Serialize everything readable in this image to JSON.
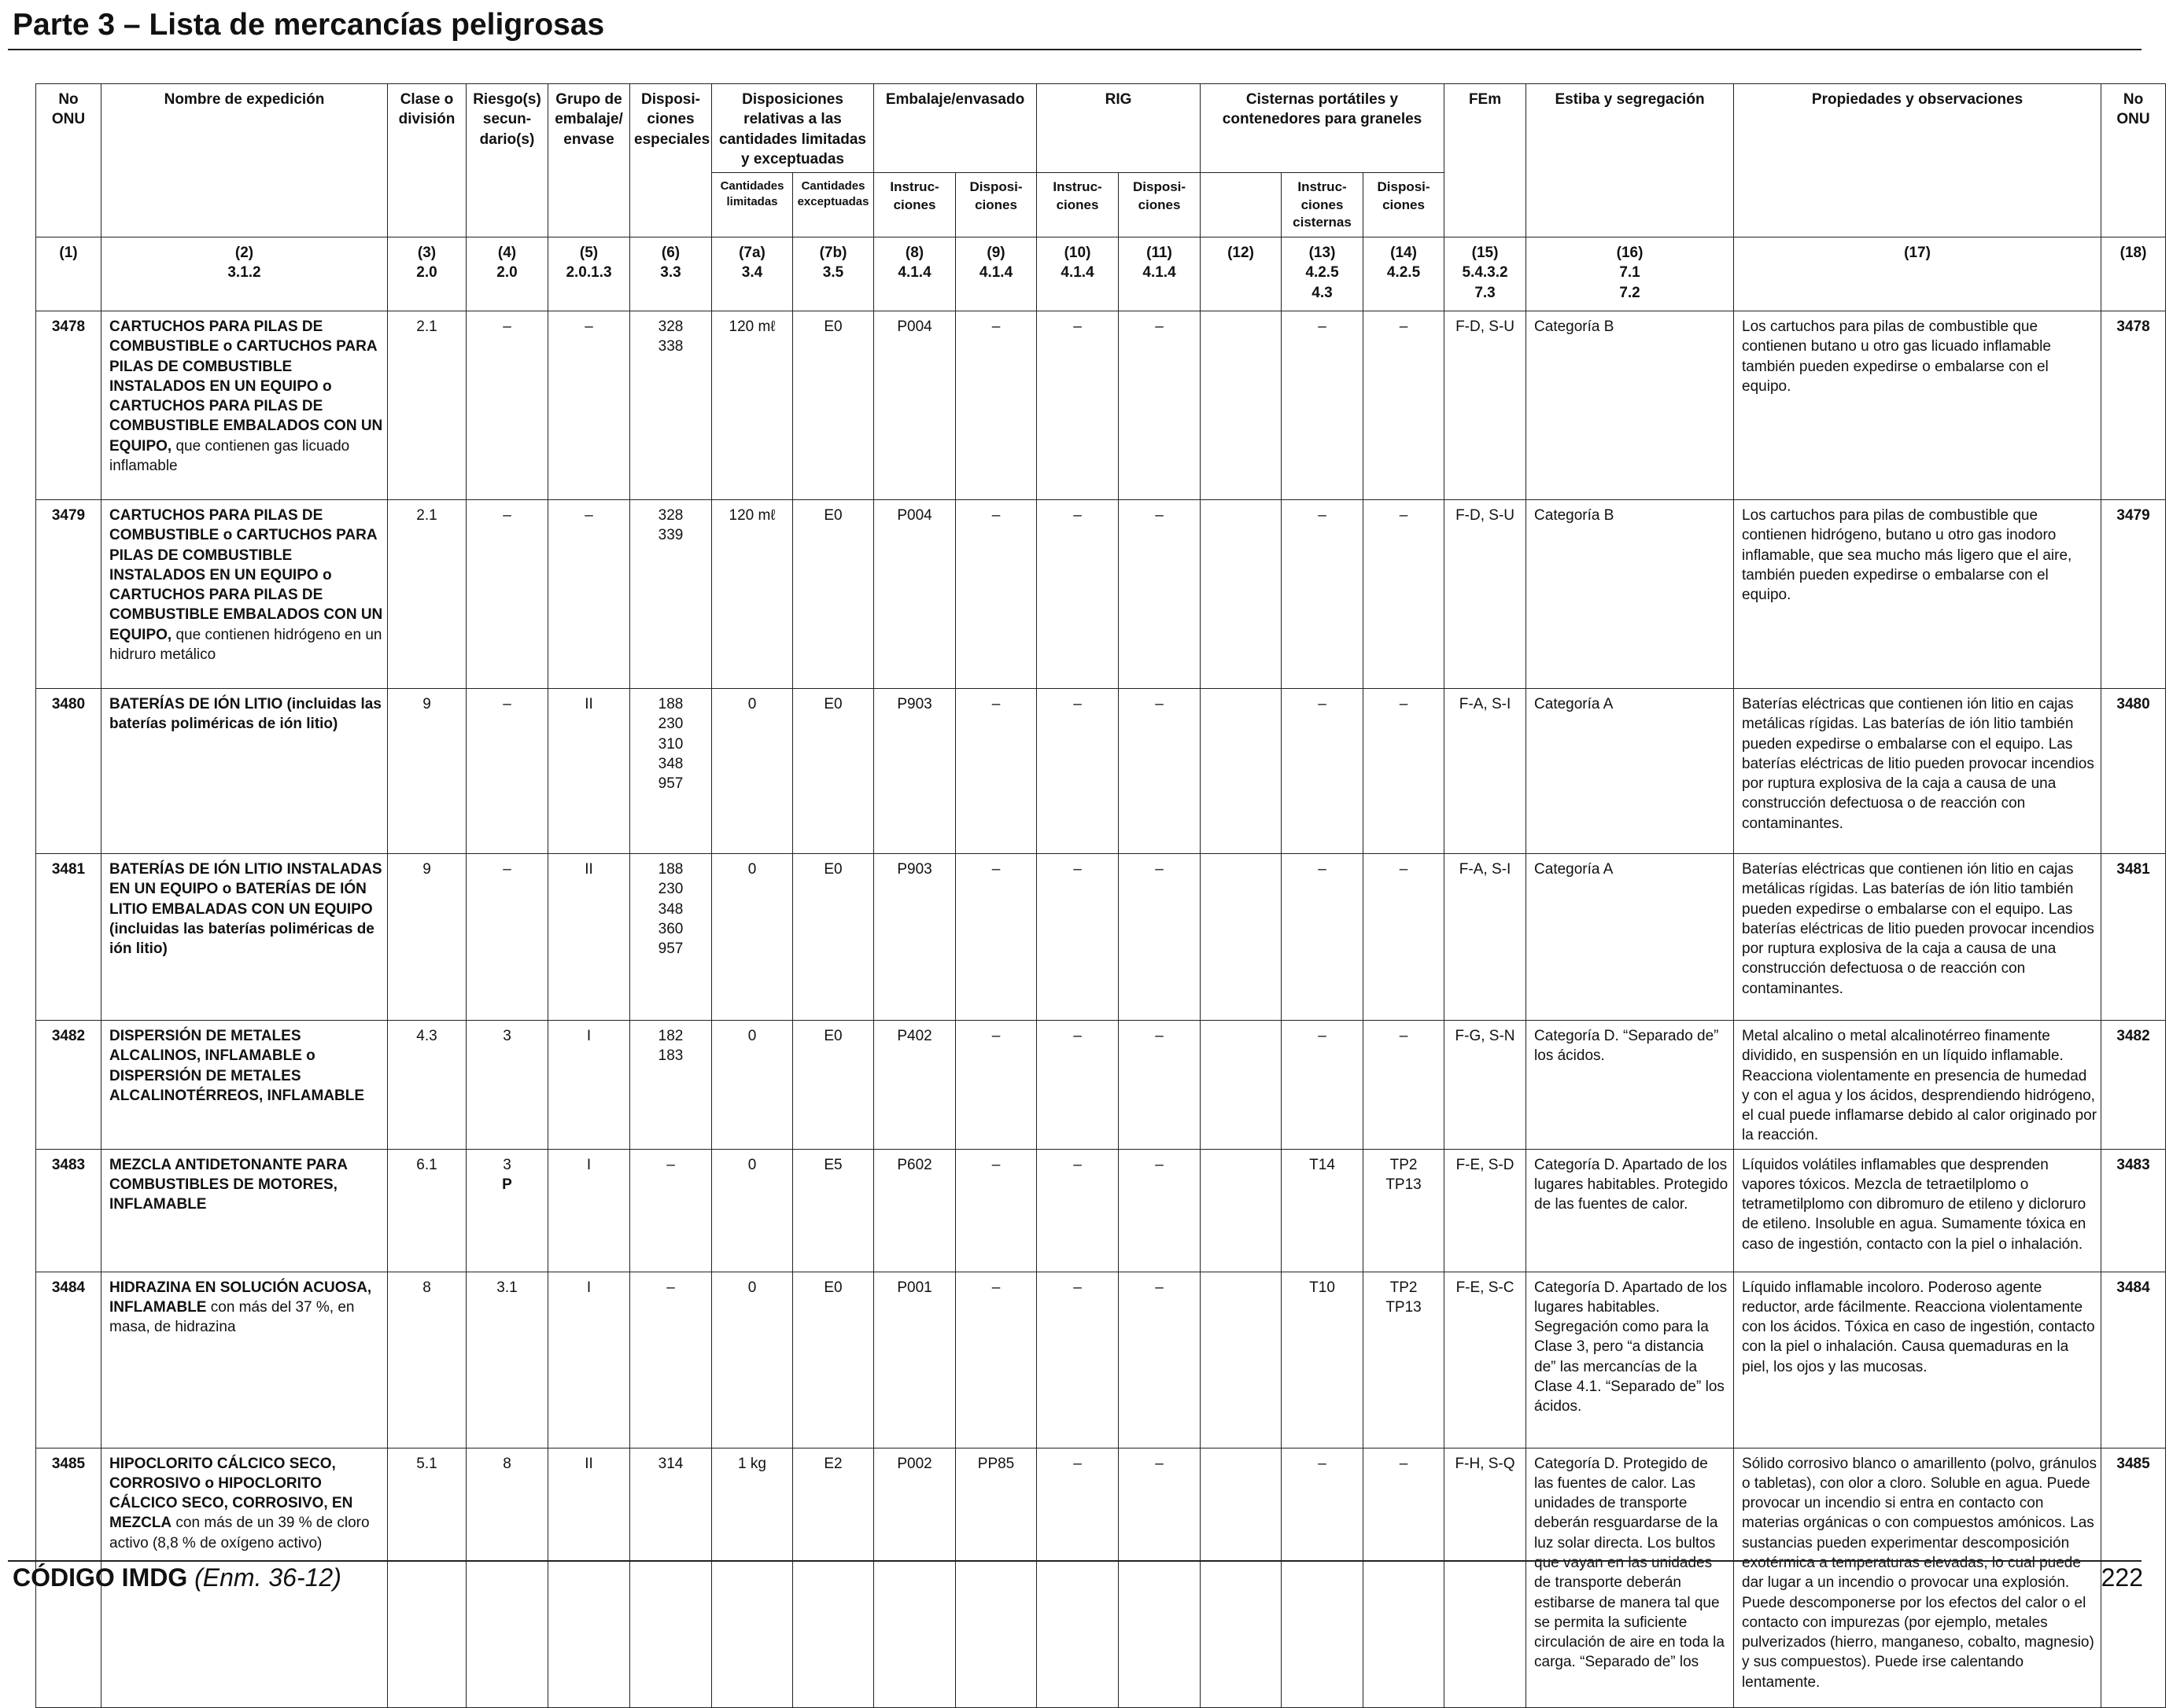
{
  "page": {
    "title": "Parte 3 – Lista de mercancías peligrosas",
    "footer_code": "CÓDIGO IMDG",
    "footer_edition": "(Enm. 36-12)",
    "page_number": "222"
  },
  "headers": {
    "no_onu": "No ONU",
    "nombre": "Nombre de expedición",
    "clase": "Clase o división",
    "riesgo": "Riesgo(s) secun- dario(s)",
    "grupo": "Grupo de embalaje/ envase",
    "disposiciones": "Disposi- ciones especiales",
    "cantidades": "Disposiciones relativas a las cantidades limitadas y exceptuadas",
    "cant_limitadas": "Cantidades limitadas",
    "cant_exceptuadas": "Cantidades exceptuadas",
    "embalaje": "Embalaje/envasado",
    "emb_instr": "Instruc- ciones",
    "emb_disp": "Disposi- ciones",
    "rig": "RIG",
    "rig_instr": "Instruc- ciones",
    "rig_disp": "Disposi- ciones",
    "cisternas": "Cisternas portátiles y contenedores para graneles",
    "cis_instr": "Instruc- ciones cisternas",
    "cis_disp": "Disposi- ciones",
    "fem": "FEm",
    "estiba": "Estiba y segregación",
    "propiedades": "Propiedades y observaciones",
    "no_onu_right": "No ONU"
  },
  "col_numbers": [
    {
      "n": "(1)",
      "ref": ""
    },
    {
      "n": "(2)",
      "ref": "3.1.2"
    },
    {
      "n": "(3)",
      "ref": "2.0"
    },
    {
      "n": "(4)",
      "ref": "2.0"
    },
    {
      "n": "(5)",
      "ref": "2.0.1.3"
    },
    {
      "n": "(6)",
      "ref": "3.3"
    },
    {
      "n": "(7a)",
      "ref": "3.4"
    },
    {
      "n": "(7b)",
      "ref": "3.5"
    },
    {
      "n": "(8)",
      "ref": "4.1.4"
    },
    {
      "n": "(9)",
      "ref": "4.1.4"
    },
    {
      "n": "(10)",
      "ref": "4.1.4"
    },
    {
      "n": "(11)",
      "ref": "4.1.4"
    },
    {
      "n": "(12)",
      "ref": ""
    },
    {
      "n": "(13)",
      "ref": "4.2.5\n4.3"
    },
    {
      "n": "(14)",
      "ref": "4.2.5"
    },
    {
      "n": "(15)",
      "ref": "5.4.3.2\n7.3"
    },
    {
      "n": "(16)",
      "ref": "7.1\n7.2"
    },
    {
      "n": "(17)",
      "ref": ""
    },
    {
      "n": "(18)",
      "ref": ""
    }
  ],
  "rows": [
    {
      "onu": "3478",
      "name_bold": "CARTUCHOS PARA PILAS DE COMBUSTIBLE o CARTUCHOS PARA PILAS DE COMBUSTIBLE INSTALADOS EN UN EQUIPO o CARTUCHOS PARA PILAS DE COMBUSTIBLE EMBALADOS CON UN EQUIPO,",
      "name_rest": " que contienen gas licuado inflamable",
      "clase": "2.1",
      "riesgo": "–",
      "riesgo2": "",
      "grupo": "–",
      "disp": "328\n338",
      "lim": "120 mℓ",
      "exc": "E0",
      "emb_i": "P004",
      "emb_d": "–",
      "rig_i": "–",
      "rig_d": "–",
      "c12": "",
      "cis_i": "–",
      "cis_d": "–",
      "fem": "F-D, S-U",
      "estiba": "Categoría B",
      "obs": "Los cartuchos para pilas de combustible que contienen butano u otro gas licuado inflamable también pueden expedirse o embalarse con el equipo."
    },
    {
      "onu": "3479",
      "name_bold": "CARTUCHOS PARA PILAS DE COMBUSTIBLE o CARTUCHOS PARA PILAS DE COMBUSTIBLE INSTALADOS EN UN EQUIPO o CARTUCHOS PARA PILAS DE COMBUSTIBLE EMBALADOS CON UN EQUIPO,",
      "name_rest": " que contienen hidrógeno en un hidruro metálico",
      "clase": "2.1",
      "riesgo": "–",
      "riesgo2": "",
      "grupo": "–",
      "disp": "328\n339",
      "lim": "120 mℓ",
      "exc": "E0",
      "emb_i": "P004",
      "emb_d": "–",
      "rig_i": "–",
      "rig_d": "–",
      "c12": "",
      "cis_i": "–",
      "cis_d": "–",
      "fem": "F-D, S-U",
      "estiba": "Categoría B",
      "obs": "Los cartuchos para pilas de combustible que contienen hidrógeno, butano u otro gas inodoro inflamable, que sea mucho más ligero que el aire, también pueden expedirse o embalarse con el equipo."
    },
    {
      "onu": "3480",
      "name_bold": "BATERÍAS DE IÓN LITIO (incluidas las baterías poliméricas de ión litio)",
      "name_rest": "",
      "clase": "9",
      "riesgo": "–",
      "riesgo2": "",
      "grupo": "II",
      "disp": "188\n230\n310\n348\n957",
      "lim": "0",
      "exc": "E0",
      "emb_i": "P903",
      "emb_d": "–",
      "rig_i": "–",
      "rig_d": "–",
      "c12": "",
      "cis_i": "–",
      "cis_d": "–",
      "fem": "F-A, S-I",
      "estiba": "Categoría A",
      "obs": "Baterías eléctricas que contienen ión litio en cajas metálicas rígidas. Las baterías de ión litio también pueden expedirse o embalarse con el equipo. Las baterías eléctricas de litio pueden provocar incendios por ruptura explosiva de la caja a causa de una construcción defectuosa o de reacción con contaminantes."
    },
    {
      "onu": "3481",
      "name_bold": "BATERÍAS DE IÓN LITIO INSTALADAS EN UN EQUIPO o BATERÍAS DE IÓN LITIO EMBALADAS CON UN EQUIPO (incluidas las baterías poliméricas de ión litio)",
      "name_rest": "",
      "clase": "9",
      "riesgo": "–",
      "riesgo2": "",
      "grupo": "II",
      "disp": "188\n230\n348\n360\n957",
      "lim": "0",
      "exc": "E0",
      "emb_i": "P903",
      "emb_d": "–",
      "rig_i": "–",
      "rig_d": "–",
      "c12": "",
      "cis_i": "–",
      "cis_d": "–",
      "fem": "F-A, S-I",
      "estiba": "Categoría A",
      "obs": "Baterías eléctricas que contienen ión litio en cajas metálicas rígidas. Las baterías de ión litio también pueden expedirse o embalarse con el equipo. Las baterías eléctricas de litio pueden provocar incendios por ruptura explosiva de la caja a causa de una construcción defectuosa o de reacción con contaminantes."
    },
    {
      "onu": "3482",
      "name_bold": "DISPERSIÓN DE METALES ALCALINOS, INFLAMABLE o DISPERSIÓN DE METALES ALCALINOTÉRREOS, INFLAMABLE",
      "name_rest": "",
      "clase": "4.3",
      "riesgo": "3",
      "riesgo2": "",
      "grupo": "I",
      "disp": "182\n183",
      "lim": "0",
      "exc": "E0",
      "emb_i": "P402",
      "emb_d": "–",
      "rig_i": "–",
      "rig_d": "–",
      "c12": "",
      "cis_i": "–",
      "cis_d": "–",
      "fem": "F-G, S-N",
      "estiba": "Categoría D. “Separado de” los ácidos.",
      "obs": "Metal alcalino o metal alcalinotérreo finamente dividido, en suspensión en un líquido inflamable. Reacciona violentamente en presencia de humedad y con el agua y los ácidos, desprendiendo hidrógeno, el cual puede inflamarse debido al calor originado por la reacción."
    },
    {
      "onu": "3483",
      "name_bold": "MEZCLA ANTIDETONANTE PARA COMBUSTIBLES DE MOTORES, INFLAMABLE",
      "name_rest": "",
      "clase": "6.1",
      "riesgo": "3",
      "riesgo2": "P",
      "grupo": "I",
      "disp": "–",
      "lim": "0",
      "exc": "E5",
      "emb_i": "P602",
      "emb_d": "–",
      "rig_i": "–",
      "rig_d": "–",
      "c12": "",
      "cis_i": "T14",
      "cis_d": "TP2\nTP13",
      "fem": "F-E, S-D",
      "estiba": "Categoría D. Apartado de los lugares habitables. Protegido de las fuentes de calor.",
      "obs": "Líquidos volátiles inflamables que desprenden vapores tóxicos. Mezcla de tetraetilplomo o tetrametilplomo con dibromuro de etileno y dicloruro de etileno. Insoluble en agua. Sumamente tóxica en caso de ingestión, contacto con la piel o inhalación."
    },
    {
      "onu": "3484",
      "name_bold": "HIDRAZINA EN SOLUCIÓN ACUOSA, INFLAMABLE",
      "name_rest": " con más del 37 %, en masa, de hidrazina",
      "clase": "8",
      "riesgo": "3.1",
      "riesgo2": "",
      "grupo": "I",
      "disp": "–",
      "lim": "0",
      "exc": "E0",
      "emb_i": "P001",
      "emb_d": "–",
      "rig_i": "–",
      "rig_d": "–",
      "c12": "",
      "cis_i": "T10",
      "cis_d": "TP2\nTP13",
      "fem": "F-E, S-C",
      "estiba": "Categoría D. Apartado de los lugares habitables. Segregación como para la Clase 3, pero “a distancia de” las mercancías de la Clase 4.1. “Separado de” los ácidos.",
      "obs": "Líquido inflamable incoloro. Poderoso agente reductor, arde fácilmente. Reacciona violentamente con los ácidos. Tóxica en caso de ingestión, contacto con la piel o inhalación. Causa quemaduras en la piel, los ojos y las mucosas."
    },
    {
      "onu": "3485",
      "name_bold": "HIPOCLORITO CÁLCICO SECO, CORROSIVO o HIPOCLORITO CÁLCICO SECO, CORROSIVO, EN MEZCLA",
      "name_rest": " con más de un 39 % de cloro activo (8,8 % de oxígeno activo)",
      "clase": "5.1",
      "riesgo": "8",
      "riesgo2": "",
      "grupo": "II",
      "disp": "314",
      "lim": "1 kg",
      "exc": "E2",
      "emb_i": "P002",
      "emb_d": "PP85",
      "rig_i": "–",
      "rig_d": "–",
      "c12": "",
      "cis_i": "–",
      "cis_d": "–",
      "fem": "F-H, S-Q",
      "estiba": "Categoría D. Protegido de las fuentes de calor. Las unidades de transporte deberán resguardarse de la luz solar directa. Los bultos que vayan en las unidades de transporte deberán estibarse de manera tal que se permita la suficiente circulación de aire en toda la carga. “Separado de” los",
      "obs": "Sólido corrosivo blanco o amarillento (polvo, gránulos o tabletas), con olor a cloro. Soluble en agua. Puede provocar un incendio si entra en contacto con materias orgánicas o con compuestos amónicos. Las sustancias pueden experimentar descomposición exotérmica a temperaturas elevadas, lo cual puede dar lugar a un incendio o provocar una explosión. Puede descomponerse por los efectos del calor o el contacto con impurezas (por ejemplo, metales pulverizados (hierro, manganeso, cobalto, magnesio) y sus compuestos). Puede irse calentando lentamente."
    }
  ]
}
